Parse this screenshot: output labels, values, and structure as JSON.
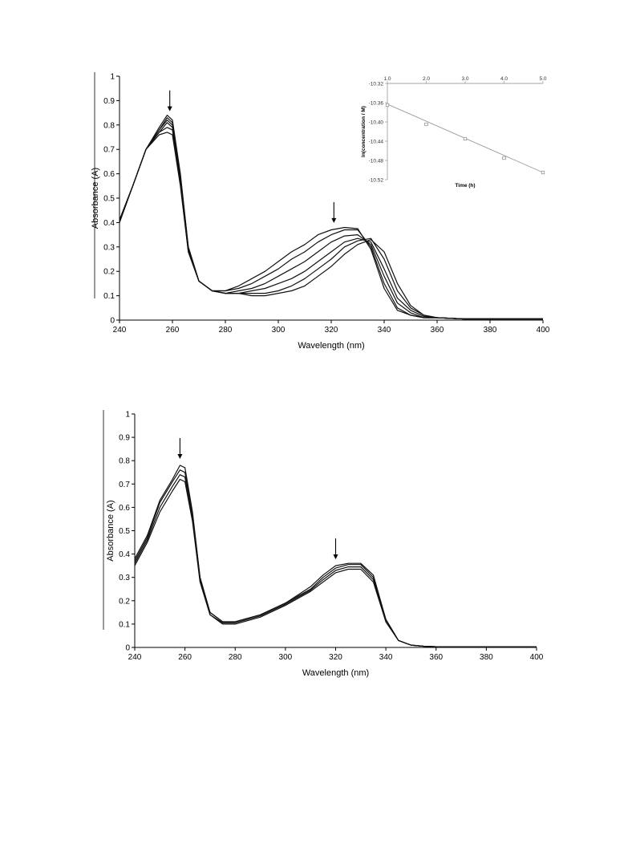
{
  "chart_data": [
    {
      "type": "line",
      "xlabel": "Wavelength (nm)",
      "ylabel": "Absorbance (A)",
      "xlim": [
        240,
        400
      ],
      "ylim": [
        0,
        1
      ],
      "xticks": [
        240,
        260,
        280,
        300,
        320,
        340,
        360,
        380,
        400
      ],
      "yticks": [
        0,
        0.1,
        0.2,
        0.3,
        0.4,
        0.5,
        0.6,
        0.7,
        0.8,
        0.9,
        1
      ],
      "grid": false,
      "arrows_at_nm": [
        259,
        321
      ],
      "series": [
        {
          "x": [
            240,
            245,
            250,
            255,
            258,
            260,
            263,
            266,
            270,
            275,
            280,
            285,
            290,
            295,
            300,
            305,
            310,
            315,
            320,
            325,
            330,
            335,
            340,
            345,
            350,
            355,
            360,
            370,
            380,
            400
          ],
          "y": [
            0.41,
            0.55,
            0.7,
            0.79,
            0.84,
            0.82,
            0.6,
            0.3,
            0.16,
            0.12,
            0.11,
            0.11,
            0.1,
            0.1,
            0.11,
            0.12,
            0.14,
            0.18,
            0.22,
            0.27,
            0.31,
            0.33,
            0.28,
            0.15,
            0.06,
            0.02,
            0.01,
            0.005,
            0.005,
            0.005
          ]
        },
        {
          "x": [
            240,
            245,
            250,
            255,
            258,
            260,
            263,
            266,
            270,
            275,
            280,
            285,
            290,
            295,
            300,
            305,
            310,
            315,
            320,
            325,
            330,
            335,
            340,
            345,
            350,
            355,
            360,
            370,
            380,
            400
          ],
          "y": [
            0.41,
            0.55,
            0.7,
            0.78,
            0.83,
            0.81,
            0.59,
            0.3,
            0.16,
            0.12,
            0.11,
            0.11,
            0.11,
            0.11,
            0.12,
            0.14,
            0.17,
            0.21,
            0.25,
            0.3,
            0.325,
            0.335,
            0.25,
            0.12,
            0.05,
            0.02,
            0.01,
            0.005,
            0.005,
            0.005
          ]
        },
        {
          "x": [
            240,
            245,
            250,
            255,
            258,
            260,
            263,
            266,
            270,
            275,
            280,
            285,
            290,
            295,
            300,
            305,
            310,
            315,
            320,
            325,
            330,
            335,
            340,
            345,
            350,
            355,
            360,
            370,
            380,
            400
          ],
          "y": [
            0.41,
            0.55,
            0.7,
            0.78,
            0.82,
            0.8,
            0.58,
            0.29,
            0.16,
            0.12,
            0.11,
            0.11,
            0.12,
            0.13,
            0.15,
            0.17,
            0.2,
            0.24,
            0.28,
            0.32,
            0.335,
            0.32,
            0.21,
            0.09,
            0.04,
            0.015,
            0.01,
            0.005,
            0.005,
            0.005
          ]
        },
        {
          "x": [
            240,
            245,
            250,
            255,
            258,
            260,
            263,
            266,
            270,
            275,
            280,
            285,
            290,
            295,
            300,
            305,
            310,
            315,
            320,
            325,
            330,
            335,
            340,
            345,
            350,
            355,
            360,
            370,
            380,
            400
          ],
          "y": [
            0.41,
            0.55,
            0.7,
            0.77,
            0.81,
            0.79,
            0.57,
            0.29,
            0.16,
            0.12,
            0.11,
            0.12,
            0.13,
            0.15,
            0.18,
            0.21,
            0.24,
            0.28,
            0.32,
            0.345,
            0.35,
            0.31,
            0.18,
            0.07,
            0.03,
            0.01,
            0.01,
            0.005,
            0.005,
            0.005
          ]
        },
        {
          "x": [
            240,
            245,
            250,
            255,
            258,
            260,
            263,
            266,
            270,
            275,
            280,
            285,
            290,
            295,
            300,
            305,
            310,
            315,
            320,
            325,
            330,
            335,
            340,
            345,
            350,
            355,
            360,
            370,
            380,
            400
          ],
          "y": [
            0.4,
            0.55,
            0.7,
            0.77,
            0.79,
            0.78,
            0.56,
            0.28,
            0.16,
            0.12,
            0.12,
            0.13,
            0.15,
            0.18,
            0.21,
            0.25,
            0.28,
            0.32,
            0.35,
            0.37,
            0.37,
            0.3,
            0.15,
            0.05,
            0.02,
            0.01,
            0.01,
            0.005,
            0.005,
            0.005
          ]
        },
        {
          "x": [
            240,
            245,
            250,
            255,
            258,
            260,
            263,
            266,
            270,
            275,
            280,
            285,
            290,
            295,
            300,
            305,
            310,
            315,
            320,
            325,
            330,
            335,
            340,
            345,
            350,
            355,
            360,
            370,
            380,
            400
          ],
          "y": [
            0.4,
            0.55,
            0.7,
            0.76,
            0.77,
            0.76,
            0.55,
            0.28,
            0.16,
            0.12,
            0.12,
            0.14,
            0.17,
            0.2,
            0.24,
            0.28,
            0.31,
            0.35,
            0.37,
            0.38,
            0.375,
            0.29,
            0.13,
            0.04,
            0.02,
            0.01,
            0.01,
            0.005,
            0.005,
            0.005
          ]
        }
      ]
    },
    {
      "type": "scatter",
      "xlabel": "Time (h)",
      "ylabel": "ln(concentration / M)",
      "xlim": [
        1.0,
        5.0
      ],
      "ylim": [
        -10.52,
        -10.32
      ],
      "xticks": [
        "1.0",
        "2.0",
        "3.0",
        "4.0",
        "5.0"
      ],
      "yticks": [
        "-10.32",
        "-10.36",
        "-10.40",
        "-10.44",
        "-10.48",
        "-10.52"
      ],
      "x": [
        1.0,
        2.0,
        3.0,
        4.0,
        5.0
      ],
      "y": [
        -10.365,
        -10.405,
        -10.435,
        -10.475,
        -10.505
      ],
      "trendline": {
        "x": [
          1.0,
          5.0
        ],
        "y": [
          -10.363,
          -10.505
        ]
      }
    },
    {
      "type": "line",
      "xlabel": "Wavelength (nm)",
      "ylabel": "Absorbance (A)",
      "xlim": [
        240,
        400
      ],
      "ylim": [
        0,
        1
      ],
      "xticks": [
        240,
        260,
        280,
        300,
        320,
        340,
        360,
        380,
        400
      ],
      "yticks": [
        0,
        0.1,
        0.2,
        0.3,
        0.4,
        0.5,
        0.6,
        0.7,
        0.8,
        0.9,
        1
      ],
      "grid": false,
      "arrows_at_nm": [
        258,
        320
      ],
      "series": [
        {
          "x": [
            240,
            245,
            250,
            255,
            258,
            260,
            263,
            266,
            270,
            275,
            280,
            290,
            300,
            310,
            315,
            320,
            325,
            330,
            335,
            340,
            345,
            350,
            355,
            360,
            400
          ],
          "y": [
            0.38,
            0.48,
            0.63,
            0.72,
            0.78,
            0.77,
            0.58,
            0.3,
            0.15,
            0.11,
            0.11,
            0.14,
            0.19,
            0.26,
            0.31,
            0.35,
            0.36,
            0.36,
            0.31,
            0.12,
            0.03,
            0.01,
            0.005,
            0.003,
            0.003
          ]
        },
        {
          "x": [
            240,
            245,
            250,
            255,
            258,
            260,
            263,
            266,
            270,
            275,
            280,
            290,
            300,
            310,
            315,
            320,
            325,
            330,
            335,
            340,
            345,
            350,
            355,
            360,
            400
          ],
          "y": [
            0.37,
            0.47,
            0.62,
            0.71,
            0.76,
            0.75,
            0.57,
            0.3,
            0.15,
            0.11,
            0.11,
            0.14,
            0.19,
            0.25,
            0.3,
            0.34,
            0.355,
            0.355,
            0.3,
            0.12,
            0.03,
            0.01,
            0.005,
            0.003,
            0.003
          ]
        },
        {
          "x": [
            240,
            245,
            250,
            255,
            258,
            260,
            263,
            266,
            270,
            275,
            280,
            290,
            300,
            310,
            315,
            320,
            325,
            330,
            335,
            340,
            345,
            350,
            355,
            360,
            400
          ],
          "y": [
            0.36,
            0.46,
            0.6,
            0.69,
            0.74,
            0.73,
            0.55,
            0.29,
            0.14,
            0.105,
            0.105,
            0.135,
            0.185,
            0.245,
            0.29,
            0.33,
            0.345,
            0.345,
            0.29,
            0.11,
            0.03,
            0.01,
            0.005,
            0.003,
            0.003
          ]
        },
        {
          "x": [
            240,
            245,
            250,
            255,
            258,
            260,
            263,
            266,
            270,
            275,
            280,
            290,
            300,
            310,
            315,
            320,
            325,
            330,
            335,
            340,
            345,
            350,
            355,
            360,
            400
          ],
          "y": [
            0.35,
            0.45,
            0.58,
            0.67,
            0.72,
            0.71,
            0.54,
            0.28,
            0.14,
            0.1,
            0.1,
            0.13,
            0.18,
            0.24,
            0.28,
            0.32,
            0.335,
            0.335,
            0.28,
            0.11,
            0.03,
            0.01,
            0.005,
            0.003,
            0.003
          ]
        }
      ]
    }
  ]
}
